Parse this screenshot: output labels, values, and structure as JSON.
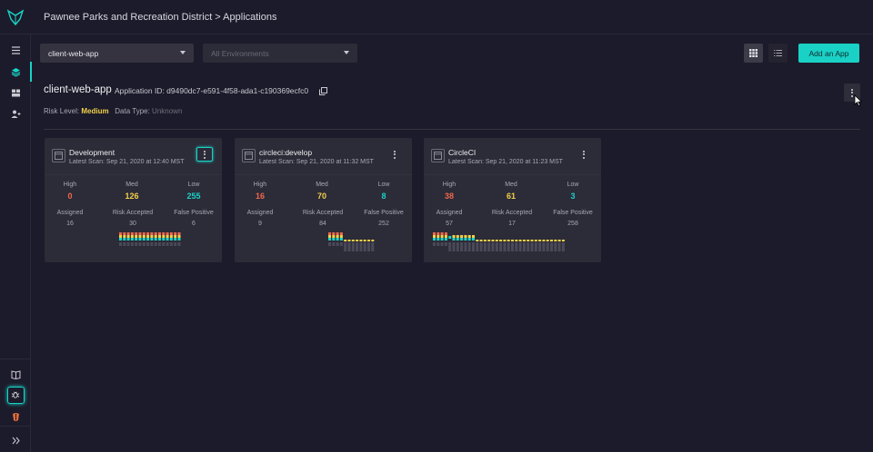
{
  "header": {
    "breadcrumb": "Pawnee Parks and Recreation District > Applications"
  },
  "sidebar": {
    "items": [
      {
        "icon": "menu-icon"
      },
      {
        "icon": "layers-icon",
        "active": true
      },
      {
        "icon": "dashboard-icon"
      },
      {
        "icon": "users-icon"
      }
    ],
    "bottom": [
      {
        "icon": "book-icon"
      },
      {
        "icon": "bug-icon"
      },
      {
        "icon": "partner-logo-icon"
      },
      {
        "icon": "expand-icon"
      }
    ]
  },
  "toolbar": {
    "app_select": "client-web-app",
    "env_select": "All Environments",
    "add_button": "Add an App"
  },
  "app": {
    "name": "client-web-app",
    "id_label": "Application ID: d9490dc7-e591-4f58-ada1-c190369ecfc0",
    "risk_label": "Risk Level:",
    "risk_value": "Medium",
    "data_type_label": "Data Type:",
    "data_type_value": "Unknown"
  },
  "colors": {
    "accent": "#19d3c5",
    "high": "#f0684c",
    "med": "#f2d14a",
    "low": "#19d3c5",
    "background": "#1c1b2b",
    "card": "#2c2b38"
  },
  "labels": {
    "high": "High",
    "med": "Med",
    "low": "Low",
    "assigned": "Assigned",
    "risk_accepted": "Risk Accepted",
    "false_positive": "False Positive"
  },
  "environments": [
    {
      "name": "Development",
      "scan": "Latest Scan: Sep 21, 2020 at 12:40 MST",
      "high": "0",
      "med": "126",
      "low": "255",
      "assigned": "16",
      "risk_accepted": "30",
      "false_positive": "6",
      "history": [
        3,
        3,
        3,
        3,
        3,
        3,
        3,
        3,
        3,
        3,
        3,
        3,
        3,
        3,
        3,
        3
      ],
      "focused": true
    },
    {
      "name": "circleci:develop",
      "scan": "Latest Scan: Sep 21, 2020 at 11:32 MST",
      "high": "16",
      "med": "70",
      "low": "8",
      "assigned": "9",
      "risk_accepted": "84",
      "false_positive": "252",
      "history": [
        3,
        3,
        3,
        3,
        1,
        1,
        1,
        1,
        1,
        1,
        1,
        1
      ],
      "focused": false
    },
    {
      "name": "CircleCI",
      "scan": "Latest Scan: Sep 21, 2020 at 11:23 MST",
      "high": "38",
      "med": "61",
      "low": "3",
      "assigned": "57",
      "risk_accepted": "17",
      "false_positive": "258",
      "history": [
        3,
        3,
        3,
        3,
        0,
        2,
        2,
        2,
        2,
        2,
        2,
        1,
        1,
        1,
        1,
        1,
        1,
        1,
        1,
        1,
        1,
        1,
        1,
        1,
        1,
        1,
        1,
        1,
        1,
        1,
        1,
        1,
        1,
        1
      ],
      "focused": false
    }
  ]
}
